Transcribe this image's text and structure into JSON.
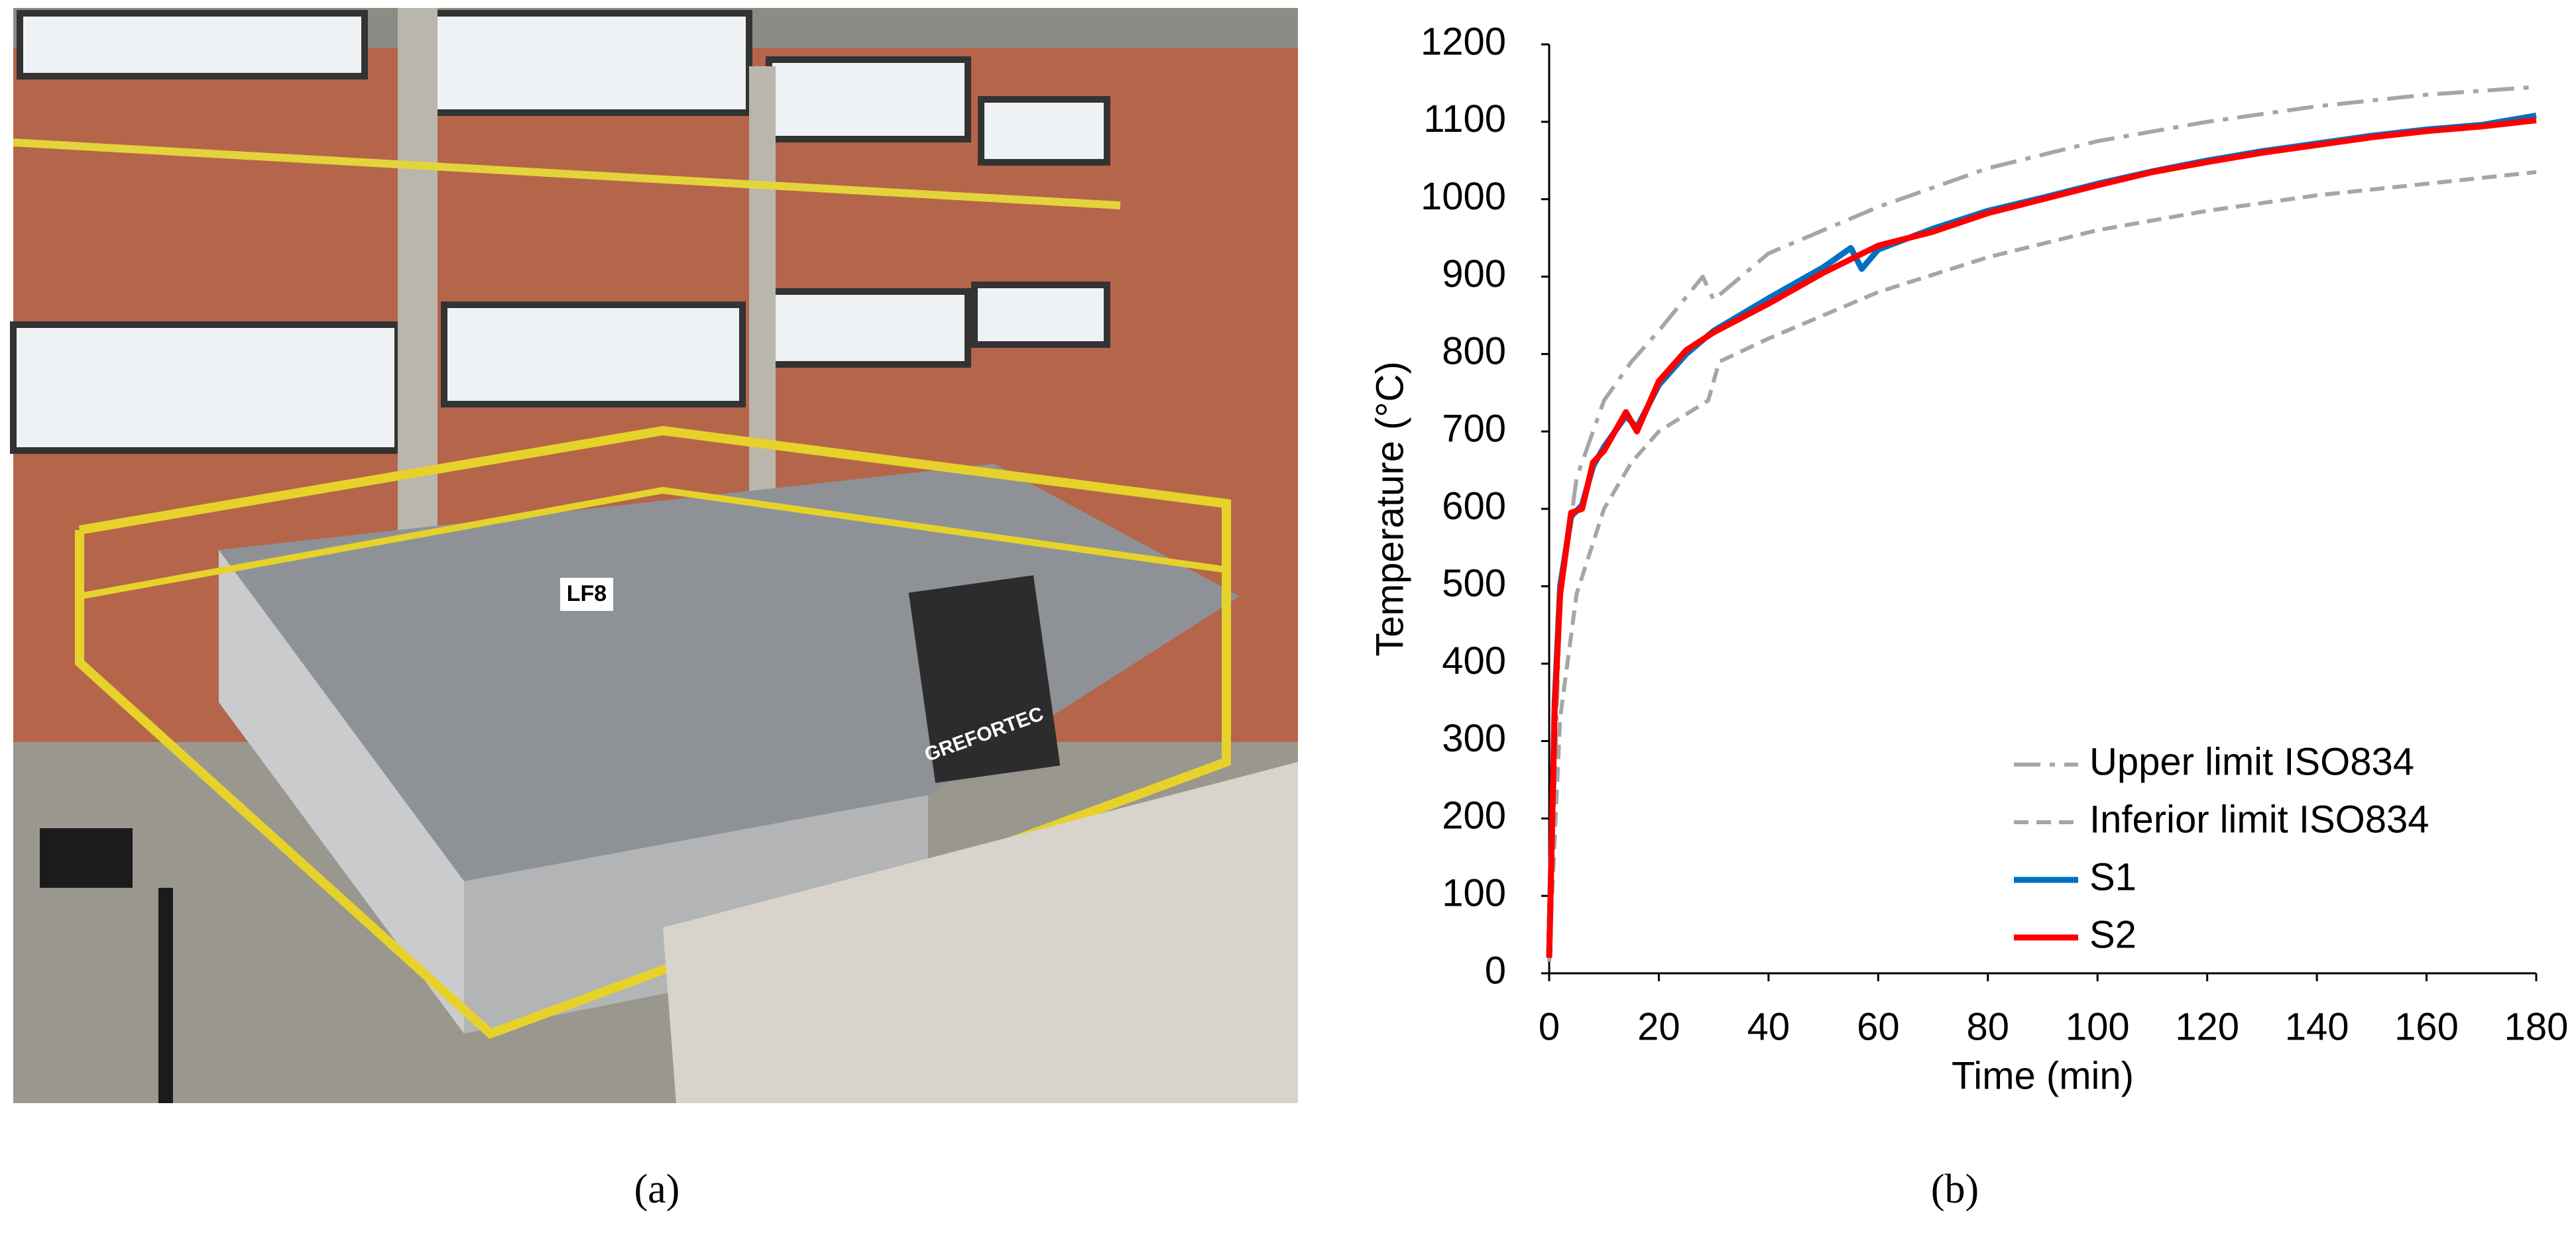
{
  "photo": {
    "labels": [
      "LF8",
      "GREFORTEC"
    ]
  },
  "captions": [
    "(a)",
    "(b)"
  ],
  "chart_data": {
    "type": "line",
    "xlabel": "Time (min)",
    "ylabel": "Temperature (°C)",
    "xlim": [
      0,
      180
    ],
    "xticks": [
      0,
      20,
      40,
      60,
      80,
      100,
      120,
      140,
      160,
      180
    ],
    "ylim": [
      0,
      1200
    ],
    "yticks": [
      0,
      100,
      200,
      300,
      400,
      500,
      600,
      700,
      800,
      900,
      1000,
      1100,
      1200
    ],
    "grid": false,
    "legend": "lower right",
    "series": [
      {
        "name": "Upper limit ISO834",
        "color": "#a6a6a6",
        "style": "dashdot",
        "x": [
          0,
          2,
          5,
          10,
          15,
          20,
          28,
          30,
          40,
          60,
          80,
          100,
          120,
          140,
          160,
          180
        ],
        "values": [
          20,
          480,
          640,
          740,
          790,
          830,
          900,
          870,
          930,
          990,
          1040,
          1075,
          1100,
          1120,
          1135,
          1145
        ]
      },
      {
        "name": "Inferior limit ISO834",
        "color": "#a6a6a6",
        "style": "dashed",
        "x": [
          0,
          2,
          5,
          10,
          15,
          20,
          29,
          31,
          40,
          60,
          80,
          100,
          120,
          140,
          160,
          180
        ],
        "values": [
          15,
          330,
          490,
          600,
          660,
          700,
          740,
          790,
          820,
          880,
          925,
          960,
          985,
          1005,
          1020,
          1035
        ]
      },
      {
        "name": "S1",
        "color": "#0070c0",
        "style": "solid",
        "x": [
          0,
          1,
          2,
          4,
          6,
          8,
          10,
          14,
          16,
          20,
          25,
          30,
          40,
          50,
          55,
          57,
          60,
          70,
          80,
          90,
          100,
          110,
          120,
          130,
          140,
          150,
          160,
          170,
          180
        ],
        "values": [
          20,
          350,
          500,
          590,
          605,
          655,
          680,
          720,
          705,
          760,
          800,
          830,
          872,
          912,
          937,
          910,
          935,
          962,
          985,
          1002,
          1020,
          1036,
          1050,
          1062,
          1072,
          1082,
          1090,
          1096,
          1108
        ]
      },
      {
        "name": "S2",
        "color": "#ff0000",
        "style": "solid",
        "x": [
          0,
          1,
          2,
          4,
          6,
          8,
          10,
          14,
          16,
          20,
          25,
          30,
          40,
          50,
          60,
          70,
          80,
          90,
          100,
          110,
          120,
          130,
          140,
          150,
          160,
          170,
          180
        ],
        "values": [
          20,
          340,
          490,
          595,
          600,
          660,
          675,
          725,
          700,
          765,
          805,
          828,
          865,
          905,
          940,
          958,
          982,
          1000,
          1018,
          1035,
          1048,
          1060,
          1070,
          1080,
          1088,
          1094,
          1102
        ]
      }
    ]
  }
}
